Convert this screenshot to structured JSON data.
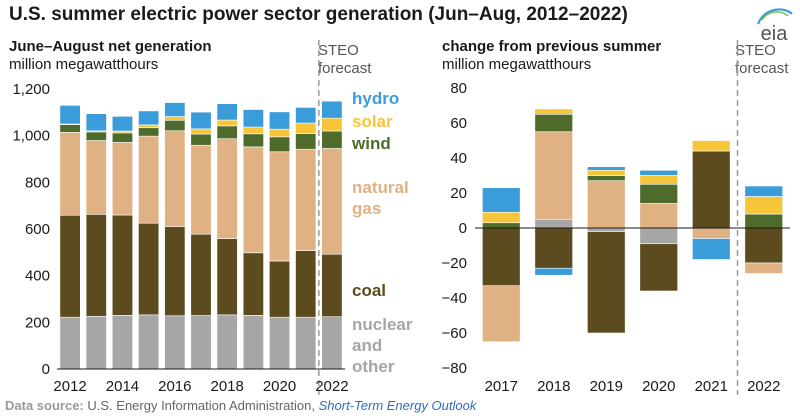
{
  "title": "U.S. summer electric power sector generation (Jun–Aug, 2012–2022)",
  "footer": {
    "label": "Data source:",
    "source": "U.S. Energy Information Administration,",
    "link": "Short-Term Energy Outlook"
  },
  "logo_text": "eia",
  "colors": {
    "nuclear": "#a6a6a6",
    "coal": "#5c4b1f",
    "natural_gas": "#e0b183",
    "wind": "#4f6b2b",
    "solar": "#f7c538",
    "hydro": "#3b9cda"
  },
  "chart_data": [
    {
      "type": "bar",
      "stacked": true,
      "subtitle": "June–August net generation",
      "ylabel": "million megawatthours",
      "forecast_label": [
        "STEO",
        "forecast"
      ],
      "categories": [
        2012,
        2013,
        2014,
        2015,
        2016,
        2017,
        2018,
        2019,
        2020,
        2021,
        2022
      ],
      "x_tick_labels": [
        "2012",
        "2014",
        "2016",
        "2018",
        "2020",
        "2022"
      ],
      "ylim": [
        0,
        1200
      ],
      "y_ticks": [
        0,
        200,
        400,
        600,
        800,
        1000,
        1200
      ],
      "y_tick_labels": [
        "0",
        "200",
        "400",
        "600",
        "800",
        "1,000",
        "1,200"
      ],
      "legend_placement": "right",
      "series": [
        {
          "name": "nuclear and other",
          "legend_lines": [
            "nuclear",
            "and",
            "other"
          ],
          "color_key": "nuclear",
          "values": [
            222,
            226,
            230,
            232,
            228,
            229,
            232,
            230,
            222,
            222,
            224
          ]
        },
        {
          "name": "coal",
          "legend_lines": [
            "coal"
          ],
          "color_key": "coal",
          "values": [
            437,
            437,
            430,
            393,
            383,
            349,
            327,
            268,
            241,
            285,
            268
          ]
        },
        {
          "name": "natural gas",
          "legend_lines": [
            "natural",
            "gas"
          ],
          "color_key": "natural_gas",
          "values": [
            355,
            316,
            311,
            373,
            410,
            381,
            428,
            454,
            468,
            435,
            453
          ]
        },
        {
          "name": "wind",
          "legend_lines": [
            "wind"
          ],
          "color_key": "wind",
          "values": [
            33,
            37,
            41,
            36,
            45,
            48,
            55,
            56,
            64,
            67,
            75
          ]
        },
        {
          "name": "solar",
          "legend_lines": [
            "solar"
          ],
          "color_key": "solar",
          "values": [
            3,
            5,
            8,
            12,
            16,
            22,
            25,
            29,
            33,
            45,
            55
          ]
        },
        {
          "name": "hydro",
          "legend_lines": [
            "hydro"
          ],
          "color_key": "hydro",
          "values": [
            80,
            73,
            63,
            60,
            60,
            72,
            70,
            75,
            74,
            67,
            73
          ]
        }
      ]
    },
    {
      "type": "bar",
      "stacked": true,
      "subtitle": "change from previous summer",
      "ylabel": "million megawatthours",
      "forecast_label": [
        "STEO",
        "forecast"
      ],
      "categories": [
        "2017",
        "2018",
        "2019",
        "2020",
        "2021",
        "2022"
      ],
      "ylim": [
        -80,
        80
      ],
      "y_ticks": [
        -80,
        -60,
        -40,
        -20,
        0,
        20,
        40,
        60,
        80
      ],
      "y_tick_labels": [
        "−80",
        "−60",
        "−40",
        "−20",
        "0",
        "20",
        "40",
        "60",
        "80"
      ],
      "series": [
        {
          "name": "nuclear and other",
          "color_key": "nuclear",
          "values": [
            0,
            5,
            -2,
            -9,
            0,
            0
          ]
        },
        {
          "name": "coal",
          "color_key": "coal",
          "values": [
            -33,
            -23,
            -58,
            -27,
            44,
            -20
          ]
        },
        {
          "name": "natural gas",
          "color_key": "natural_gas",
          "values": [
            -32,
            50,
            27,
            14,
            -6,
            -6
          ]
        },
        {
          "name": "wind",
          "color_key": "wind",
          "values": [
            3,
            10,
            3,
            11,
            0,
            8
          ]
        },
        {
          "name": "solar",
          "color_key": "solar",
          "values": [
            6,
            3,
            3,
            5,
            6,
            10
          ]
        },
        {
          "name": "hydro",
          "color_key": "hydro",
          "values": [
            14,
            -4,
            2,
            3,
            -12,
            6
          ]
        }
      ]
    }
  ]
}
